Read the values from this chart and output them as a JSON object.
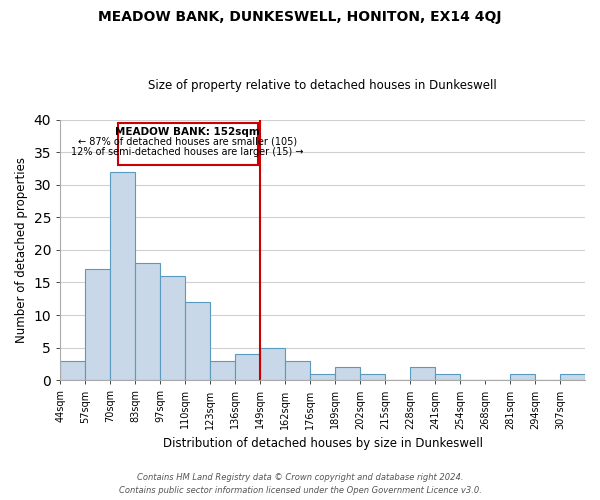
{
  "title": "MEADOW BANK, DUNKESWELL, HONITON, EX14 4QJ",
  "subtitle": "Size of property relative to detached houses in Dunkeswell",
  "xlabel": "Distribution of detached houses by size in Dunkeswell",
  "ylabel": "Number of detached properties",
  "bin_labels": [
    "44sqm",
    "57sqm",
    "70sqm",
    "83sqm",
    "97sqm",
    "110sqm",
    "123sqm",
    "136sqm",
    "149sqm",
    "162sqm",
    "176sqm",
    "189sqm",
    "202sqm",
    "215sqm",
    "228sqm",
    "241sqm",
    "254sqm",
    "268sqm",
    "281sqm",
    "294sqm",
    "307sqm"
  ],
  "bar_values": [
    3,
    17,
    32,
    18,
    16,
    12,
    3,
    4,
    5,
    3,
    1,
    2,
    1,
    0,
    2,
    1,
    0,
    0,
    1,
    0,
    1
  ],
  "bar_color": "#c8d8e8",
  "bar_edge_color": "#5a9abf",
  "vline_x": 8,
  "vline_color": "#cc0000",
  "annotation_title": "MEADOW BANK: 152sqm",
  "annotation_line1": "← 87% of detached houses are smaller (105)",
  "annotation_line2": "12% of semi-detached houses are larger (15) →",
  "annotation_box_color": "#ffffff",
  "annotation_box_edge": "#cc0000",
  "ylim": [
    0,
    40
  ],
  "yticks": [
    0,
    5,
    10,
    15,
    20,
    25,
    30,
    35,
    40
  ],
  "footer1": "Contains HM Land Registry data © Crown copyright and database right 2024.",
  "footer2": "Contains public sector information licensed under the Open Government Licence v3.0.",
  "bg_color": "#ffffff",
  "grid_color": "#d0d0d0"
}
